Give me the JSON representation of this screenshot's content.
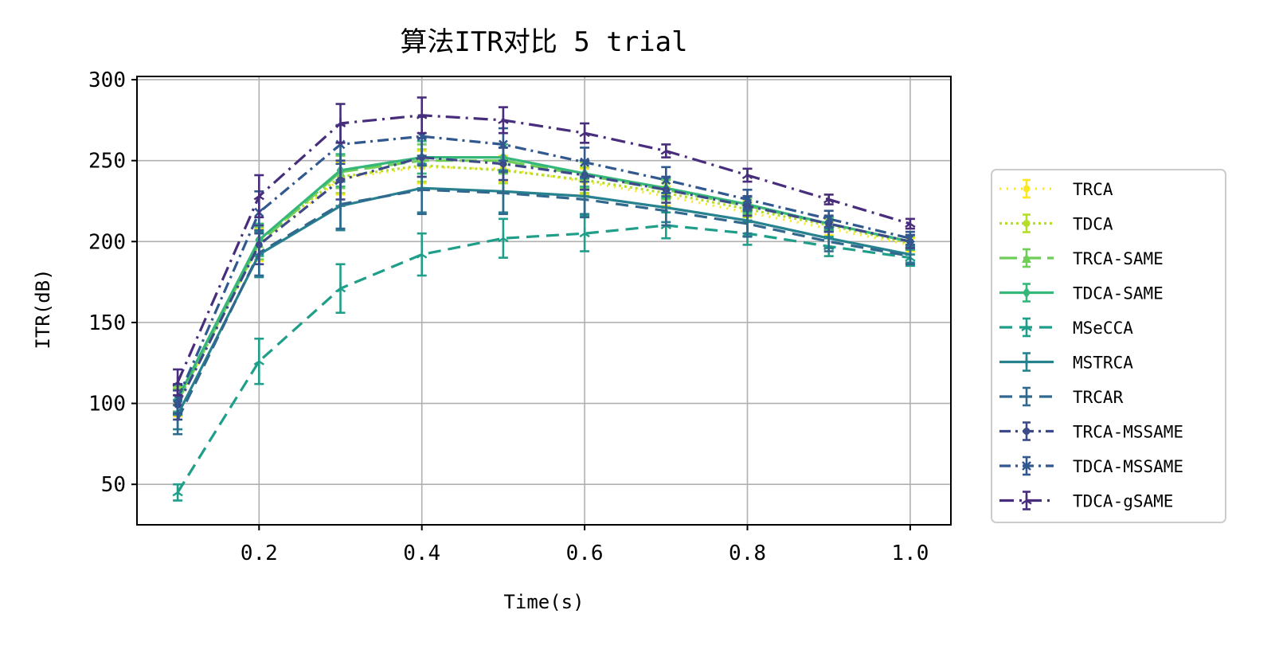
{
  "chart_data": {
    "type": "line",
    "title": "算法ITR对比 5 trial",
    "xlabel": "Time(s)",
    "ylabel": "ITR(dB)",
    "xlim": [
      0.05,
      1.05
    ],
    "ylim": [
      25,
      302
    ],
    "x_ticks": [
      0.2,
      0.4,
      0.6,
      0.8,
      1.0
    ],
    "x_tick_labels": [
      "0.2",
      "0.4",
      "0.6",
      "0.8",
      "1.0"
    ],
    "y_ticks": [
      50,
      100,
      150,
      200,
      250,
      300
    ],
    "y_tick_labels": [
      "50",
      "100",
      "150",
      "200",
      "250",
      "300"
    ],
    "grid": true,
    "legend_position": "right, outside plot",
    "x": [
      0.1,
      0.2,
      0.3,
      0.4,
      0.5,
      0.6,
      0.7,
      0.8,
      0.9,
      1.0
    ],
    "series": [
      {
        "name": "TRCA",
        "color": "#fde725",
        "dash": "2,7",
        "marker": "circle",
        "values": [
          100,
          198,
          239,
          246,
          245,
          237,
          228,
          218,
          208,
          198
        ],
        "errors": [
          8,
          10,
          10,
          10,
          8,
          8,
          6,
          5,
          4,
          4
        ]
      },
      {
        "name": "TDCA",
        "color": "#b5de2b",
        "dash": "3,4",
        "marker": "circle",
        "values": [
          102,
          201,
          240,
          247,
          244,
          238,
          230,
          220,
          210,
          199
        ],
        "errors": [
          8,
          10,
          10,
          10,
          8,
          8,
          6,
          5,
          4,
          4
        ]
      },
      {
        "name": "TRCA-SAME",
        "color": "#6ece58",
        "dash": "22,8",
        "marker": "triangle",
        "values": [
          101,
          199,
          243,
          250,
          250,
          241,
          232,
          222,
          211,
          200
        ],
        "errors": [
          8,
          10,
          10,
          10,
          8,
          8,
          6,
          5,
          4,
          4
        ]
      },
      {
        "name": "TDCA-SAME",
        "color": "#35b779",
        "dash": "",
        "marker": "diamond",
        "values": [
          103,
          201,
          244,
          252,
          252,
          242,
          233,
          223,
          211,
          200
        ],
        "errors": [
          8,
          10,
          10,
          10,
          8,
          8,
          6,
          5,
          4,
          4
        ]
      },
      {
        "name": "MSeCCA",
        "color": "#1f9e89",
        "dash": "16,9",
        "marker": "tri",
        "values": [
          45,
          126,
          171,
          192,
          202,
          205,
          210,
          205,
          197,
          190
        ],
        "errors": [
          5,
          14,
          15,
          13,
          12,
          11,
          8,
          7,
          6,
          5
        ]
      },
      {
        "name": "MSTRCA",
        "color": "#26828e",
        "dash": "",
        "marker": "plus",
        "values": [
          93,
          192,
          222,
          233,
          231,
          228,
          221,
          213,
          202,
          192
        ],
        "errors": [
          9,
          14,
          15,
          15,
          13,
          11,
          9,
          8,
          6,
          5
        ]
      },
      {
        "name": "TRCAR",
        "color": "#31688e",
        "dash": "16,9",
        "marker": "none",
        "values": [
          90,
          193,
          223,
          232,
          230,
          226,
          219,
          211,
          200,
          191
        ],
        "errors": [
          9,
          14,
          15,
          15,
          13,
          11,
          9,
          8,
          6,
          5
        ]
      },
      {
        "name": "TRCA-MSSAME",
        "color": "#3e4989",
        "dash": "14,6,3,6",
        "marker": "circle",
        "values": [
          99,
          198,
          238,
          252,
          248,
          241,
          232,
          222,
          211,
          200
        ],
        "errors": [
          9,
          12,
          12,
          12,
          10,
          9,
          8,
          6,
          5,
          4
        ]
      },
      {
        "name": "TDCA-MSSAME",
        "color": "#31588f",
        "dash": "14,6,3,6",
        "marker": "x",
        "values": [
          103,
          218,
          260,
          265,
          260,
          249,
          238,
          226,
          214,
          202
        ],
        "errors": [
          9,
          13,
          12,
          12,
          10,
          9,
          8,
          6,
          5,
          4
        ]
      },
      {
        "name": "TDCA-gSAME",
        "color": "#472d7b",
        "dash": "18,7,3,7",
        "marker": "tri",
        "values": [
          113,
          228,
          273,
          278,
          275,
          267,
          256,
          241,
          226,
          211
        ],
        "errors": [
          8,
          13,
          12,
          11,
          8,
          6,
          4,
          4,
          3,
          3
        ]
      }
    ]
  }
}
